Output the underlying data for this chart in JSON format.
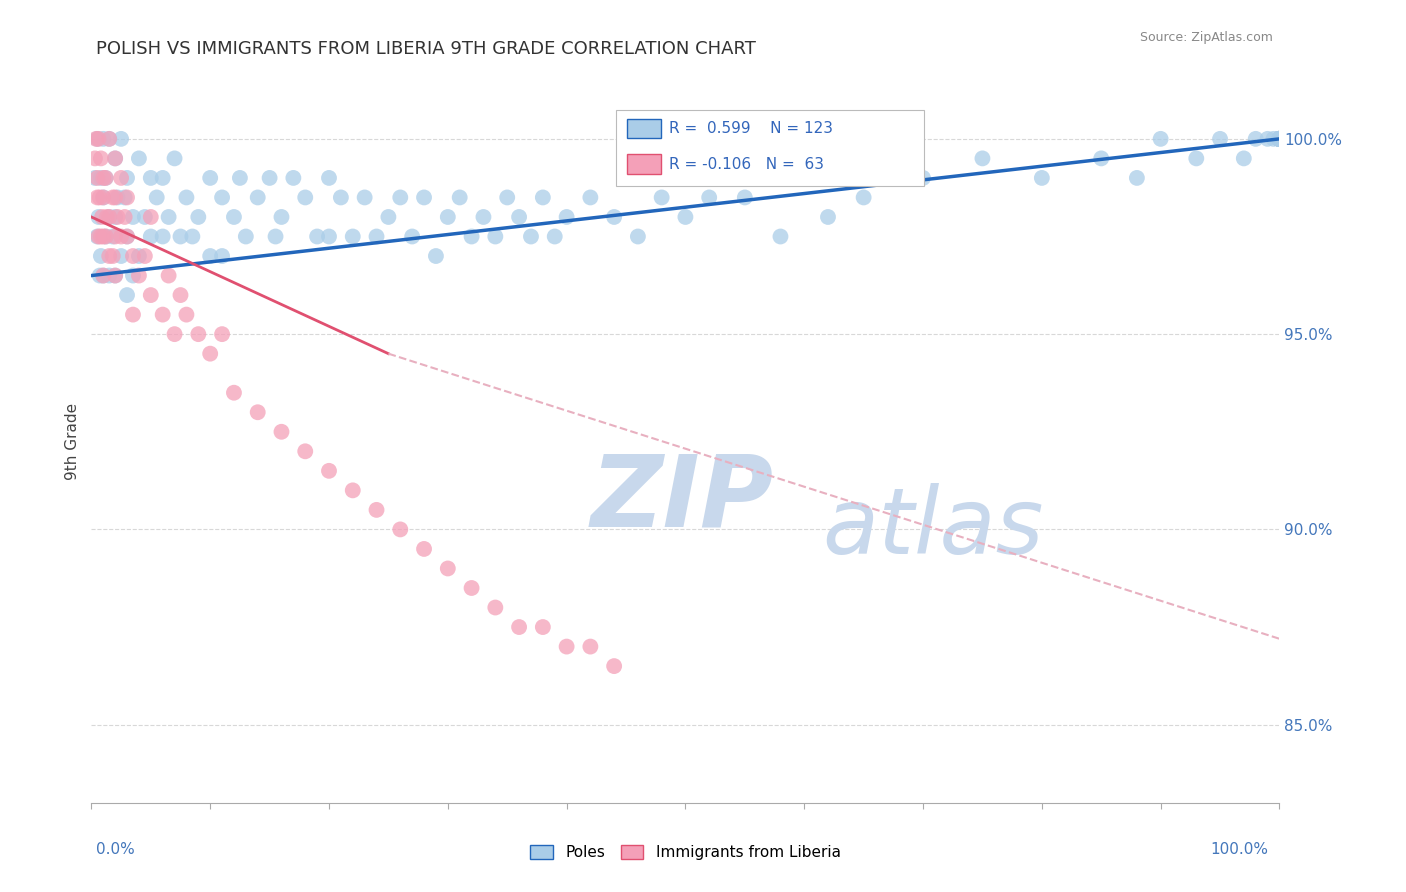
{
  "title": "POLISH VS IMMIGRANTS FROM LIBERIA 9TH GRADE CORRELATION CHART",
  "source": "Source: ZipAtlas.com",
  "ylabel": "9th Grade",
  "xlim": [
    0.0,
    100.0
  ],
  "ylim": [
    83.0,
    101.5
  ],
  "poles_R": 0.599,
  "poles_N": 123,
  "liberia_R": -0.106,
  "liberia_N": 63,
  "poles_color": "#aacde8",
  "poles_line_color": "#2266bb",
  "liberia_color": "#f4a0b8",
  "liberia_line_color": "#e05070",
  "liberia_dash_color": "#e8b0c0",
  "watermark_zip": "ZIP",
  "watermark_atlas": "atlas",
  "watermark_color": "#c8d8ec",
  "background_color": "#ffffff",
  "grid_color": "#d8d8d8",
  "poles_line_x0": 0.0,
  "poles_line_y0": 96.5,
  "poles_line_x1": 100.0,
  "poles_line_y1": 100.0,
  "liberia_solid_x0": 0.0,
  "liberia_solid_y0": 98.0,
  "liberia_solid_x1": 25.0,
  "liberia_solid_y1": 94.5,
  "liberia_dash_x0": 25.0,
  "liberia_dash_y0": 94.5,
  "liberia_dash_x1": 100.0,
  "liberia_dash_y1": 87.2,
  "poles_x": [
    0.3,
    0.5,
    0.5,
    0.6,
    0.7,
    0.8,
    0.8,
    1.0,
    1.0,
    1.0,
    1.2,
    1.2,
    1.5,
    1.5,
    1.5,
    1.8,
    2.0,
    2.0,
    2.0,
    2.2,
    2.5,
    2.5,
    2.8,
    3.0,
    3.0,
    3.0,
    3.5,
    3.5,
    4.0,
    4.0,
    4.5,
    5.0,
    5.0,
    5.5,
    6.0,
    6.0,
    6.5,
    7.0,
    7.5,
    8.0,
    8.5,
    9.0,
    10.0,
    10.0,
    11.0,
    11.0,
    12.0,
    12.5,
    13.0,
    14.0,
    15.0,
    15.5,
    16.0,
    17.0,
    18.0,
    19.0,
    20.0,
    20.0,
    21.0,
    22.0,
    23.0,
    24.0,
    25.0,
    26.0,
    27.0,
    28.0,
    29.0,
    30.0,
    31.0,
    32.0,
    33.0,
    34.0,
    35.0,
    36.0,
    37.0,
    38.0,
    39.0,
    40.0,
    42.0,
    44.0,
    46.0,
    48.0,
    50.0,
    52.0,
    55.0,
    58.0,
    62.0,
    65.0,
    70.0,
    75.0,
    80.0,
    85.0,
    88.0,
    90.0,
    93.0,
    95.0,
    97.0,
    98.0,
    99.0,
    99.5,
    100.0,
    100.0,
    100.0,
    100.0,
    100.0,
    100.0,
    100.0,
    100.0,
    100.0,
    100.0,
    100.0,
    100.0,
    100.0,
    100.0,
    100.0,
    100.0,
    100.0,
    100.0,
    100.0,
    100.0,
    100.0,
    100.0,
    100.0
  ],
  "poles_y": [
    99.0,
    97.5,
    100.0,
    98.0,
    96.5,
    99.0,
    97.0,
    100.0,
    98.5,
    96.5,
    97.5,
    99.0,
    100.0,
    98.0,
    96.5,
    97.5,
    99.5,
    98.0,
    96.5,
    98.5,
    100.0,
    97.0,
    98.5,
    99.0,
    97.5,
    96.0,
    98.0,
    96.5,
    99.5,
    97.0,
    98.0,
    99.0,
    97.5,
    98.5,
    99.0,
    97.5,
    98.0,
    99.5,
    97.5,
    98.5,
    97.5,
    98.0,
    99.0,
    97.0,
    98.5,
    97.0,
    98.0,
    99.0,
    97.5,
    98.5,
    99.0,
    97.5,
    98.0,
    99.0,
    98.5,
    97.5,
    99.0,
    97.5,
    98.5,
    97.5,
    98.5,
    97.5,
    98.0,
    98.5,
    97.5,
    98.5,
    97.0,
    98.0,
    98.5,
    97.5,
    98.0,
    97.5,
    98.5,
    98.0,
    97.5,
    98.5,
    97.5,
    98.0,
    98.5,
    98.0,
    97.5,
    98.5,
    98.0,
    98.5,
    98.5,
    97.5,
    98.0,
    98.5,
    99.0,
    99.5,
    99.0,
    99.5,
    99.0,
    100.0,
    99.5,
    100.0,
    99.5,
    100.0,
    100.0,
    100.0,
    100.0,
    100.0,
    100.0,
    100.0,
    100.0,
    100.0,
    100.0,
    100.0,
    100.0,
    100.0,
    100.0,
    100.0,
    100.0,
    100.0,
    100.0,
    100.0,
    100.0,
    100.0,
    100.0,
    100.0,
    100.0,
    100.0,
    100.0
  ],
  "liberia_x": [
    0.3,
    0.4,
    0.5,
    0.5,
    0.6,
    0.6,
    0.7,
    0.8,
    0.8,
    0.9,
    1.0,
    1.0,
    1.0,
    1.0,
    1.2,
    1.2,
    1.3,
    1.5,
    1.5,
    1.5,
    1.8,
    1.8,
    2.0,
    2.0,
    2.0,
    2.0,
    2.2,
    2.5,
    2.5,
    2.8,
    3.0,
    3.0,
    3.5,
    3.5,
    4.0,
    4.5,
    5.0,
    5.0,
    6.0,
    6.5,
    7.0,
    7.5,
    8.0,
    9.0,
    10.0,
    11.0,
    12.0,
    14.0,
    16.0,
    18.0,
    20.0,
    22.0,
    24.0,
    26.0,
    28.0,
    30.0,
    32.0,
    34.0,
    36.0,
    38.0,
    40.0,
    42.0,
    44.0
  ],
  "liberia_y": [
    99.5,
    100.0,
    98.5,
    99.0,
    97.5,
    100.0,
    98.5,
    99.5,
    97.5,
    98.0,
    99.0,
    97.5,
    96.5,
    98.5,
    97.5,
    99.0,
    98.0,
    100.0,
    98.0,
    97.0,
    98.5,
    97.0,
    99.5,
    98.5,
    97.5,
    96.5,
    98.0,
    97.5,
    99.0,
    98.0,
    97.5,
    98.5,
    97.0,
    95.5,
    96.5,
    97.0,
    96.0,
    98.0,
    95.5,
    96.5,
    95.0,
    96.0,
    95.5,
    95.0,
    94.5,
    95.0,
    93.5,
    93.0,
    92.5,
    92.0,
    91.5,
    91.0,
    90.5,
    90.0,
    89.5,
    89.0,
    88.5,
    88.0,
    87.5,
    87.5,
    87.0,
    87.0,
    86.5
  ]
}
